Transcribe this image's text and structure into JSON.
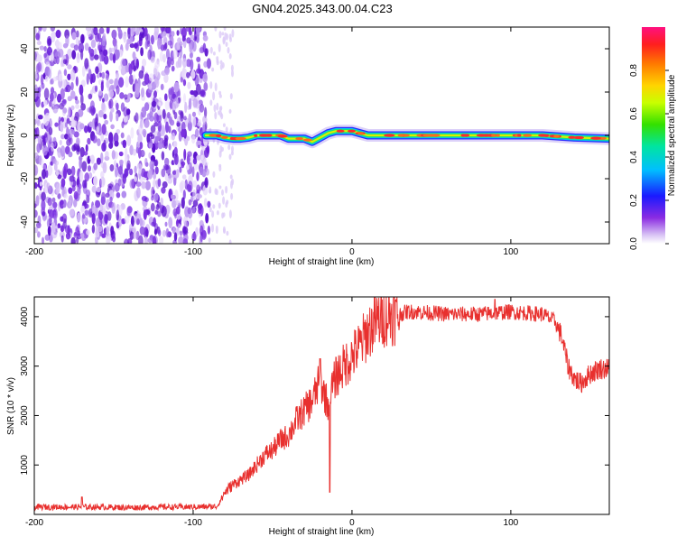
{
  "title": "GN04.2025.343.00.04.C23",
  "chart_data": [
    {
      "type": "heatmap",
      "name": "spectrogram",
      "xlabel": "Height of straight line (km)",
      "ylabel": "Frequency (Hz)",
      "xlim": [
        -200,
        162
      ],
      "ylim": [
        -50,
        50
      ],
      "xticks": [
        -200,
        -100,
        0,
        100
      ],
      "yticks": [
        -40,
        -20,
        0,
        20,
        40
      ],
      "noise_region_x": [
        -200,
        -90
      ],
      "faint_noise_region_x": [
        -90,
        -75
      ],
      "signal_start_x": -92,
      "signal_track": {
        "x": [
          -92,
          -85,
          -80,
          -75,
          -70,
          -65,
          -60,
          -55,
          -50,
          -45,
          -40,
          -35,
          -30,
          -25,
          -20,
          -15,
          -10,
          -5,
          0,
          5,
          10,
          20,
          30,
          50,
          80,
          100,
          120,
          140,
          162
        ],
        "freq": [
          0,
          0,
          -1,
          -1.5,
          -1.5,
          -1,
          0,
          0,
          0,
          0,
          -1.5,
          -1.5,
          -1.5,
          -3,
          -1,
          1,
          2,
          2,
          2,
          1,
          0,
          0,
          0,
          0,
          0,
          0,
          0,
          -1,
          -1.5
        ]
      },
      "colorbar": {
        "label": "Normalized spectral amplitude",
        "range": [
          0,
          1
        ],
        "ticks": [
          "0.0",
          "0.2",
          "0.4",
          "0.6",
          "0.8"
        ]
      }
    },
    {
      "type": "line",
      "name": "snr",
      "xlabel": "Height of straight line (km)",
      "ylabel": "SNR (10 * v/v)",
      "xlim": [
        -200,
        162
      ],
      "ylim": [
        0,
        4400
      ],
      "xticks": [
        -200,
        -100,
        0,
        100
      ],
      "yticks": [
        1000,
        2000,
        3000,
        4000
      ],
      "color": "#e8302e",
      "series": [
        {
          "name": "SNR",
          "x": [
            -200,
            -180,
            -160,
            -140,
            -120,
            -100,
            -85,
            -80,
            -75,
            -70,
            -65,
            -60,
            -55,
            -50,
            -45,
            -40,
            -35,
            -30,
            -25,
            -20,
            -17,
            -15,
            -13,
            -10,
            -5,
            0,
            5,
            10,
            15,
            20,
            25,
            30,
            35,
            40,
            60,
            80,
            100,
            120,
            128,
            132,
            136,
            140,
            144,
            150,
            156,
            162
          ],
          "y": [
            150,
            150,
            150,
            140,
            150,
            150,
            160,
            450,
            600,
            700,
            800,
            1000,
            1200,
            1300,
            1500,
            1600,
            1900,
            2100,
            2300,
            2700,
            2400,
            2200,
            2500,
            2800,
            3000,
            3200,
            3400,
            3700,
            3900,
            4000,
            4050,
            4050,
            4100,
            4100,
            4050,
            4050,
            4100,
            4050,
            3900,
            3600,
            3000,
            2750,
            2650,
            2850,
            2950,
            2950
          ]
        }
      ],
      "spikes": [
        {
          "x": -20,
          "y": 3150
        },
        {
          "x": -14,
          "y": 450
        },
        {
          "x": 90,
          "y": 4350
        },
        {
          "x": -170,
          "y": 350
        }
      ]
    }
  ]
}
